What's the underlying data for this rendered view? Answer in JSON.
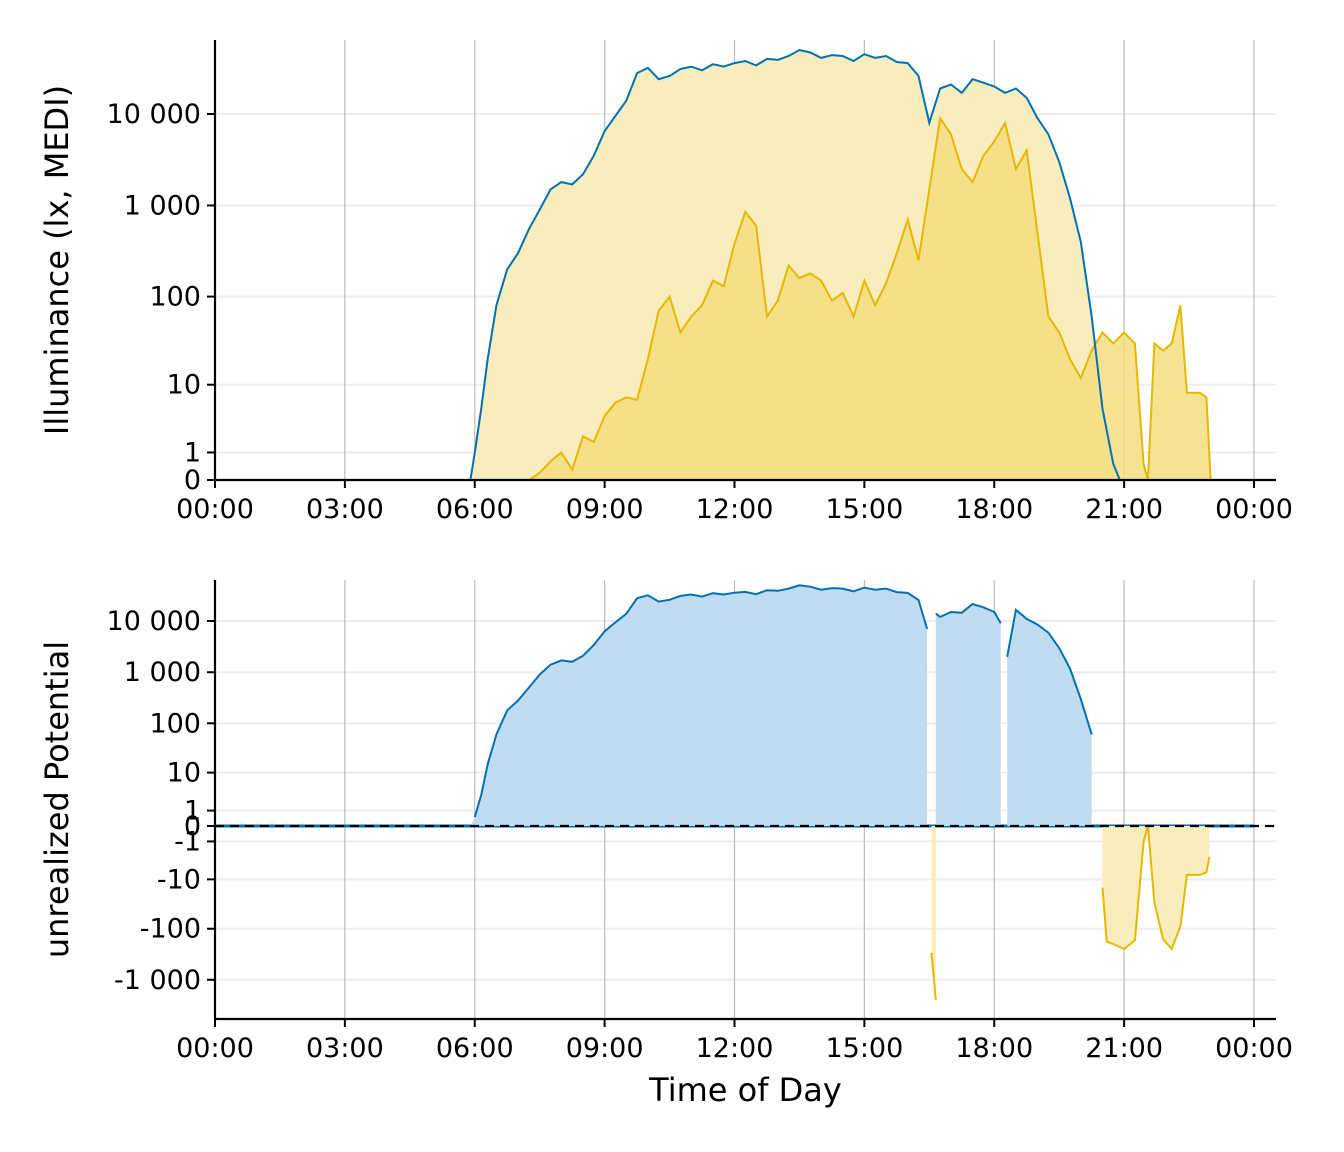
{
  "colors": {
    "outdoor": "#0072B2",
    "personal": "#E6B800",
    "outdoor_fill": "#F9EDBE",
    "personal_fill": "#F4DD80",
    "potential_fill": "#C1DCF0",
    "deficit_fill": "#F9EDBE",
    "grid_major": "#BBBBBB",
    "grid_minor": "#EDEDED"
  },
  "chart_data": [
    {
      "type": "area",
      "xlabel": "",
      "ylabel": "Illuminance (lx, MEDI)",
      "y_scale": "symlog",
      "xlim": [
        "00:00",
        "24:00"
      ],
      "x_ticks": [
        "00:00",
        "03:00",
        "06:00",
        "09:00",
        "12:00",
        "15:00",
        "18:00",
        "21:00",
        "00:00"
      ],
      "y_ticks": [
        {
          "value": 0,
          "label": "0"
        },
        {
          "value": 1,
          "label": "1"
        },
        {
          "value": 10,
          "label": "10"
        },
        {
          "value": 100,
          "label": "100"
        },
        {
          "value": 1000,
          "label": "1 000"
        },
        {
          "value": 10000,
          "label": "10 000"
        }
      ],
      "grid": true,
      "legend": "none",
      "series": [
        {
          "key": "outdoor",
          "values": [
            [
              0,
              0
            ],
            [
              5.9,
              0
            ],
            [
              6.0,
              1
            ],
            [
              6.15,
              5
            ],
            [
              6.3,
              20
            ],
            [
              6.5,
              80
            ],
            [
              6.75,
              200
            ],
            [
              7.0,
              300
            ],
            [
              7.25,
              550
            ],
            [
              7.5,
              900
            ],
            [
              7.75,
              1500
            ],
            [
              8.0,
              1800
            ],
            [
              8.25,
              1700
            ],
            [
              8.5,
              2200
            ],
            [
              8.75,
              3500
            ],
            [
              9.0,
              6500
            ],
            [
              9.25,
              9500
            ],
            [
              9.5,
              14000
            ],
            [
              9.75,
              28000
            ],
            [
              10.0,
              32000
            ],
            [
              10.25,
              24000
            ],
            [
              10.5,
              26000
            ],
            [
              10.75,
              31000
            ],
            [
              11.0,
              33000
            ],
            [
              11.25,
              30000
            ],
            [
              11.5,
              35000
            ],
            [
              11.75,
              33000
            ],
            [
              12.0,
              36000
            ],
            [
              12.25,
              38000
            ],
            [
              12.5,
              34000
            ],
            [
              12.75,
              40000
            ],
            [
              13.0,
              39000
            ],
            [
              13.25,
              43000
            ],
            [
              13.5,
              50000
            ],
            [
              13.75,
              47000
            ],
            [
              14.0,
              41000
            ],
            [
              14.25,
              44000
            ],
            [
              14.5,
              43000
            ],
            [
              14.75,
              38000
            ],
            [
              15.0,
              45000
            ],
            [
              15.25,
              41000
            ],
            [
              15.5,
              43000
            ],
            [
              15.75,
              37000
            ],
            [
              16.0,
              36000
            ],
            [
              16.25,
              26000
            ],
            [
              16.5,
              8000
            ],
            [
              16.75,
              19000
            ],
            [
              17.0,
              21000
            ],
            [
              17.25,
              17000
            ],
            [
              17.5,
              24000
            ],
            [
              17.75,
              22000
            ],
            [
              18.0,
              20000
            ],
            [
              18.25,
              17000
            ],
            [
              18.5,
              19000
            ],
            [
              18.75,
              15000
            ],
            [
              19.0,
              9000
            ],
            [
              19.25,
              6000
            ],
            [
              19.5,
              3000
            ],
            [
              19.75,
              1200
            ],
            [
              20.0,
              400
            ],
            [
              20.25,
              60
            ],
            [
              20.5,
              5
            ],
            [
              20.75,
              0.5
            ],
            [
              20.9,
              0
            ],
            [
              24,
              0
            ]
          ]
        },
        {
          "key": "personal",
          "values": [
            [
              0,
              0
            ],
            [
              7.25,
              0
            ],
            [
              7.5,
              0.2
            ],
            [
              7.75,
              0.6
            ],
            [
              8.0,
              1
            ],
            [
              8.25,
              0.3
            ],
            [
              8.5,
              2
            ],
            [
              8.75,
              1.6
            ],
            [
              9.0,
              4
            ],
            [
              9.25,
              6
            ],
            [
              9.5,
              7
            ],
            [
              9.75,
              6.5
            ],
            [
              10.0,
              20
            ],
            [
              10.25,
              70
            ],
            [
              10.5,
              100
            ],
            [
              10.75,
              40
            ],
            [
              11.0,
              60
            ],
            [
              11.25,
              80
            ],
            [
              11.5,
              150
            ],
            [
              11.75,
              130
            ],
            [
              12.0,
              380
            ],
            [
              12.25,
              850
            ],
            [
              12.5,
              600
            ],
            [
              12.75,
              60
            ],
            [
              13.0,
              90
            ],
            [
              13.25,
              220
            ],
            [
              13.5,
              160
            ],
            [
              13.75,
              180
            ],
            [
              14.0,
              150
            ],
            [
              14.25,
              90
            ],
            [
              14.5,
              110
            ],
            [
              14.75,
              60
            ],
            [
              15.0,
              150
            ],
            [
              15.25,
              80
            ],
            [
              15.5,
              140
            ],
            [
              15.75,
              300
            ],
            [
              16.0,
              700
            ],
            [
              16.25,
              250
            ],
            [
              16.5,
              1500
            ],
            [
              16.75,
              9000
            ],
            [
              17.0,
              6000
            ],
            [
              17.25,
              2500
            ],
            [
              17.5,
              1800
            ],
            [
              17.75,
              3500
            ],
            [
              18.0,
              5000
            ],
            [
              18.25,
              8000
            ],
            [
              18.5,
              2500
            ],
            [
              18.75,
              4000
            ],
            [
              19.0,
              500
            ],
            [
              19.25,
              60
            ],
            [
              19.5,
              40
            ],
            [
              19.75,
              20
            ],
            [
              20.0,
              12
            ],
            [
              20.25,
              25
            ],
            [
              20.5,
              40
            ],
            [
              20.75,
              30
            ],
            [
              21.0,
              40
            ],
            [
              21.25,
              30
            ],
            [
              21.45,
              0.5
            ],
            [
              21.55,
              0
            ],
            [
              21.7,
              30
            ],
            [
              21.9,
              25
            ],
            [
              22.1,
              30
            ],
            [
              22.3,
              80
            ],
            [
              22.45,
              8
            ],
            [
              22.75,
              8
            ],
            [
              22.9,
              7
            ],
            [
              23.0,
              0
            ]
          ]
        }
      ]
    },
    {
      "type": "area",
      "xlabel": "Time of Day",
      "ylabel": "unrealized Potential",
      "y_scale": "symlog",
      "xlim": [
        "00:00",
        "24:00"
      ],
      "x_ticks": [
        "00:00",
        "03:00",
        "06:00",
        "09:00",
        "12:00",
        "15:00",
        "18:00",
        "21:00",
        "00:00"
      ],
      "y_ticks": [
        {
          "value": -1000,
          "label": "-1 000"
        },
        {
          "value": -100,
          "label": "-100"
        },
        {
          "value": -10,
          "label": "-10"
        },
        {
          "value": -1,
          "label": "-1"
        },
        {
          "value": 0,
          "label": "0"
        },
        {
          "value": 1,
          "label": "1"
        },
        {
          "value": 10,
          "label": "10"
        },
        {
          "value": 100,
          "label": "100"
        },
        {
          "value": 1000,
          "label": "1 000"
        },
        {
          "value": 10000,
          "label": "10 000"
        }
      ],
      "grid": true,
      "legend": "none",
      "reference_line": {
        "y": 0,
        "style": "dashed"
      },
      "series": [
        {
          "key": "positive",
          "segments": [
            [
              [
                0,
                0
              ],
              [
                5.9,
                0
              ],
              [
                6.0,
                0.5
              ],
              [
                6.15,
                3
              ],
              [
                6.3,
                15
              ],
              [
                6.5,
                60
              ],
              [
                6.75,
                180
              ],
              [
                7.0,
                280
              ],
              [
                7.25,
                500
              ],
              [
                7.5,
                900
              ],
              [
                7.75,
                1400
              ],
              [
                8.0,
                1700
              ],
              [
                8.25,
                1600
              ],
              [
                8.5,
                2100
              ],
              [
                8.75,
                3400
              ],
              [
                9.0,
                6300
              ],
              [
                9.25,
                9400
              ],
              [
                9.5,
                13800
              ],
              [
                9.75,
                27800
              ],
              [
                10.0,
                31800
              ],
              [
                10.25,
                23900
              ],
              [
                10.5,
                25900
              ],
              [
                10.75,
                30900
              ],
              [
                11.0,
                32900
              ],
              [
                11.25,
                29900
              ],
              [
                11.5,
                34800
              ],
              [
                11.75,
                32900
              ],
              [
                12.0,
                35600
              ],
              [
                12.25,
                37000
              ],
              [
                12.5,
                33300
              ],
              [
                12.75,
                39900
              ],
              [
                13.0,
                38900
              ],
              [
                13.25,
                42800
              ],
              [
                13.5,
                49800
              ],
              [
                13.75,
                46800
              ],
              [
                14.0,
                40900
              ],
              [
                14.25,
                43900
              ],
              [
                14.5,
                42900
              ],
              [
                14.75,
                37900
              ],
              [
                15.0,
                44800
              ],
              [
                15.25,
                40900
              ],
              [
                15.5,
                42800
              ],
              [
                15.75,
                36700
              ],
              [
                16.0,
                35300
              ],
              [
                16.25,
                25700
              ],
              [
                16.45,
                7000
              ]
            ],
            [
              [
                16.65,
                14000
              ],
              [
                16.75,
                12000
              ],
              [
                17.0,
                15000
              ],
              [
                17.25,
                14500
              ],
              [
                17.5,
                21500
              ],
              [
                17.75,
                18500
              ],
              [
                18.0,
                15000
              ],
              [
                18.15,
                9000
              ]
            ],
            [
              [
                18.3,
                2000
              ],
              [
                18.5,
                16500
              ],
              [
                18.75,
                11000
              ],
              [
                19.0,
                8500
              ],
              [
                19.25,
                5900
              ],
              [
                19.5,
                2960
              ],
              [
                19.75,
                1180
              ],
              [
                20.0,
                300
              ],
              [
                20.25,
                60
              ]
            ]
          ]
        },
        {
          "key": "negative",
          "segments": [
            [
              [
                16.55,
                -300
              ],
              [
                16.65,
                -2500
              ]
            ],
            [
              [
                20.5,
                -15
              ],
              [
                20.6,
                -180
              ],
              [
                20.75,
                -200
              ],
              [
                21.0,
                -250
              ],
              [
                21.25,
                -170
              ],
              [
                21.45,
                -1
              ],
              [
                21.55,
                0
              ],
              [
                21.7,
                -30
              ],
              [
                21.9,
                -160
              ],
              [
                22.1,
                -250
              ],
              [
                22.3,
                -90
              ],
              [
                22.45,
                -8
              ],
              [
                22.75,
                -8
              ],
              [
                22.9,
                -7
              ],
              [
                22.97,
                -3
              ]
            ]
          ]
        }
      ]
    }
  ]
}
